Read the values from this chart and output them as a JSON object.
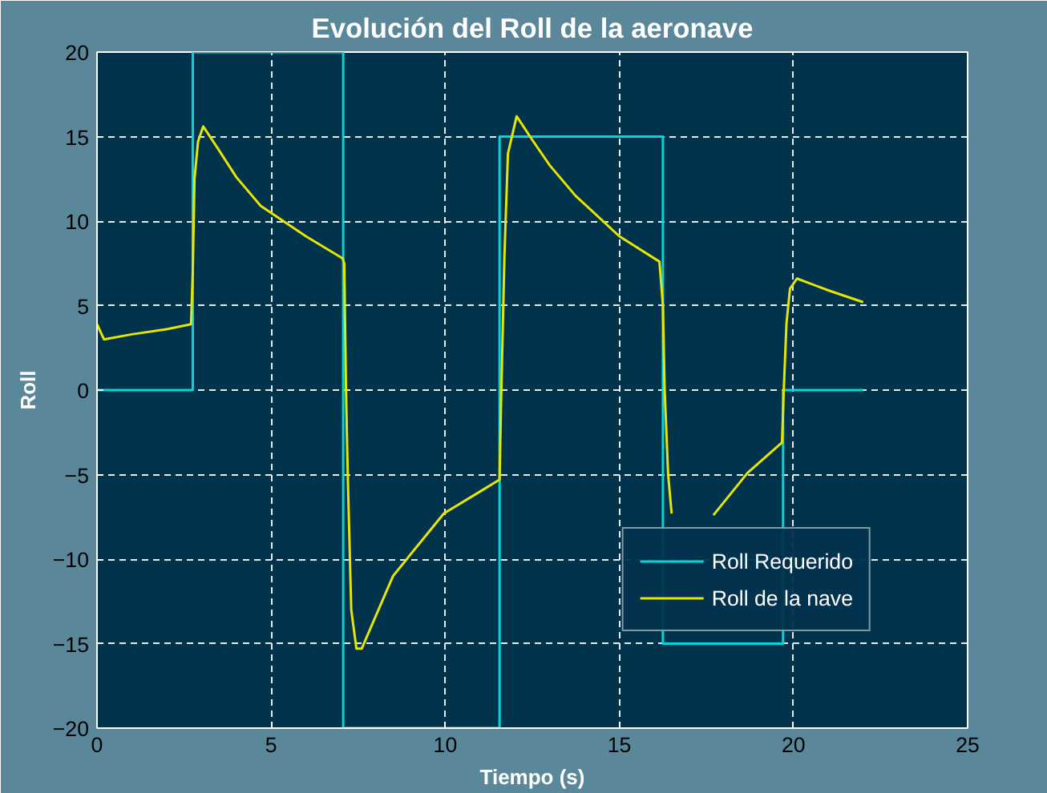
{
  "chart_data": {
    "type": "line",
    "title": "Evolución del Roll de la aeronave",
    "xlabel": "Tiempo (s)",
    "ylabel": "Roll",
    "xlim": [
      0,
      25
    ],
    "ylim": [
      -20,
      20
    ],
    "xticks": [
      0,
      5,
      10,
      15,
      20,
      25
    ],
    "yticks": [
      -20,
      -15,
      -10,
      -5,
      0,
      5,
      10,
      15,
      20
    ],
    "grid": true,
    "legend": "bottom right",
    "marker": "none",
    "line_style": "solid",
    "series": [
      {
        "name": "Roll Requerido",
        "color": "#00d8d8",
        "x": [
          0,
          2.75,
          2.75,
          7.07,
          7.07,
          11.56,
          11.56,
          16.25,
          16.25,
          19.7,
          19.7,
          22
        ],
        "values": [
          0,
          0,
          20,
          20,
          -20,
          -20,
          15,
          15,
          -15,
          -15,
          0,
          0
        ]
      },
      {
        "name": "Roll de la nave",
        "color": "#e6e600",
        "x": [
          0,
          0.2,
          1,
          2,
          2.7,
          2.75,
          2.8,
          2.9,
          3.05,
          3.5,
          4,
          4.7,
          5.35,
          6,
          7.05,
          7.1,
          7.15,
          7.2,
          7.3,
          7.45,
          7.6,
          8.5,
          9.96,
          11,
          11.56,
          11.6,
          11.7,
          11.8,
          12.05,
          12.5,
          13,
          13.74,
          15,
          16.15,
          16.25,
          16.3,
          16.4,
          16.5,
          17.1,
          17.7,
          18.68,
          19.67,
          19.72,
          19.8,
          19.9,
          20.1,
          21,
          22
        ],
        "values": [
          3.9,
          3.0,
          3.3,
          3.6,
          3.9,
          7,
          12.5,
          14.7,
          15.6,
          14.2,
          12.6,
          10.9,
          10.0,
          9.1,
          7.8,
          7.5,
          0,
          -5,
          -13,
          -15.3,
          -15.3,
          -11,
          -7.3,
          -6,
          -5.3,
          -1,
          8,
          14,
          16.2,
          14.8,
          13.3,
          11.5,
          9.1,
          7.6,
          5,
          0,
          -5,
          -7.3,
          null,
          -7.4,
          -4.9,
          -3.1,
          0,
          4,
          6,
          6.6,
          5.9,
          5.2
        ]
      }
    ]
  }
}
